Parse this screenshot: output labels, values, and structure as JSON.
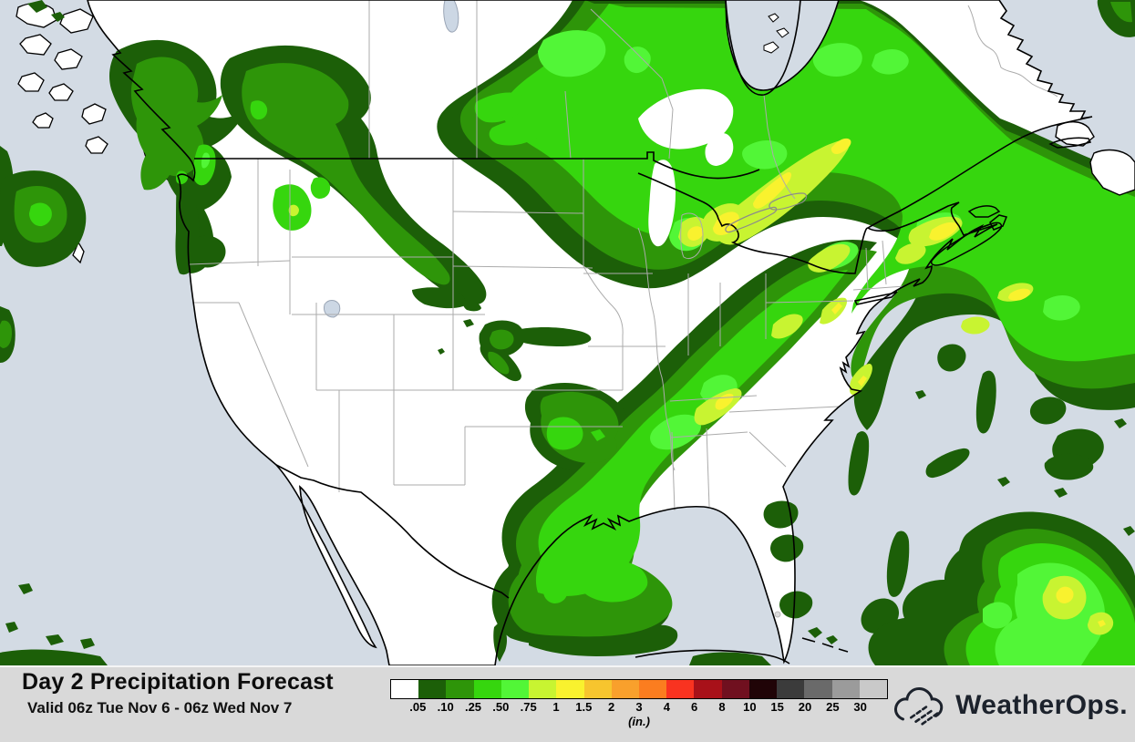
{
  "map": {
    "ocean_color": "#d3dbe4",
    "land_color": "#ffffff",
    "state_border_color": "#ababab",
    "coastline_color": "#000000",
    "precip_level_colors": {
      "0.05": "#1c5f08",
      "0.10": "#2e9509",
      "0.25": "#36d60e",
      "0.50": "#52f637",
      "0.75": "#c8f431",
      "1.00": "#f9f22e"
    }
  },
  "legend": {
    "colors": [
      "#ffffff",
      "#1c5f08",
      "#2e9509",
      "#36d60e",
      "#52f637",
      "#c8f431",
      "#f9f22e",
      "#f7c52e",
      "#f9a02c",
      "#fb7d1f",
      "#f93320",
      "#a81119",
      "#70101f",
      "#200407",
      "#3b3b3b",
      "#6a6a6a",
      "#9b9b9b",
      "#c9c9c9"
    ],
    "tick_labels": [
      ".05",
      ".10",
      ".25",
      ".50",
      ".75",
      "1",
      "1.5",
      "2",
      "3",
      "4",
      "6",
      "8",
      "10",
      "15",
      "20",
      "25",
      "30"
    ],
    "units_label": "(in.)"
  },
  "footer": {
    "title": "Day 2 Precipitation Forecast",
    "valid_text": "Valid 06z Tue Nov 6 - 06z Wed Nov 7"
  },
  "logo": {
    "brand": "WeatherOps",
    "period": "."
  }
}
